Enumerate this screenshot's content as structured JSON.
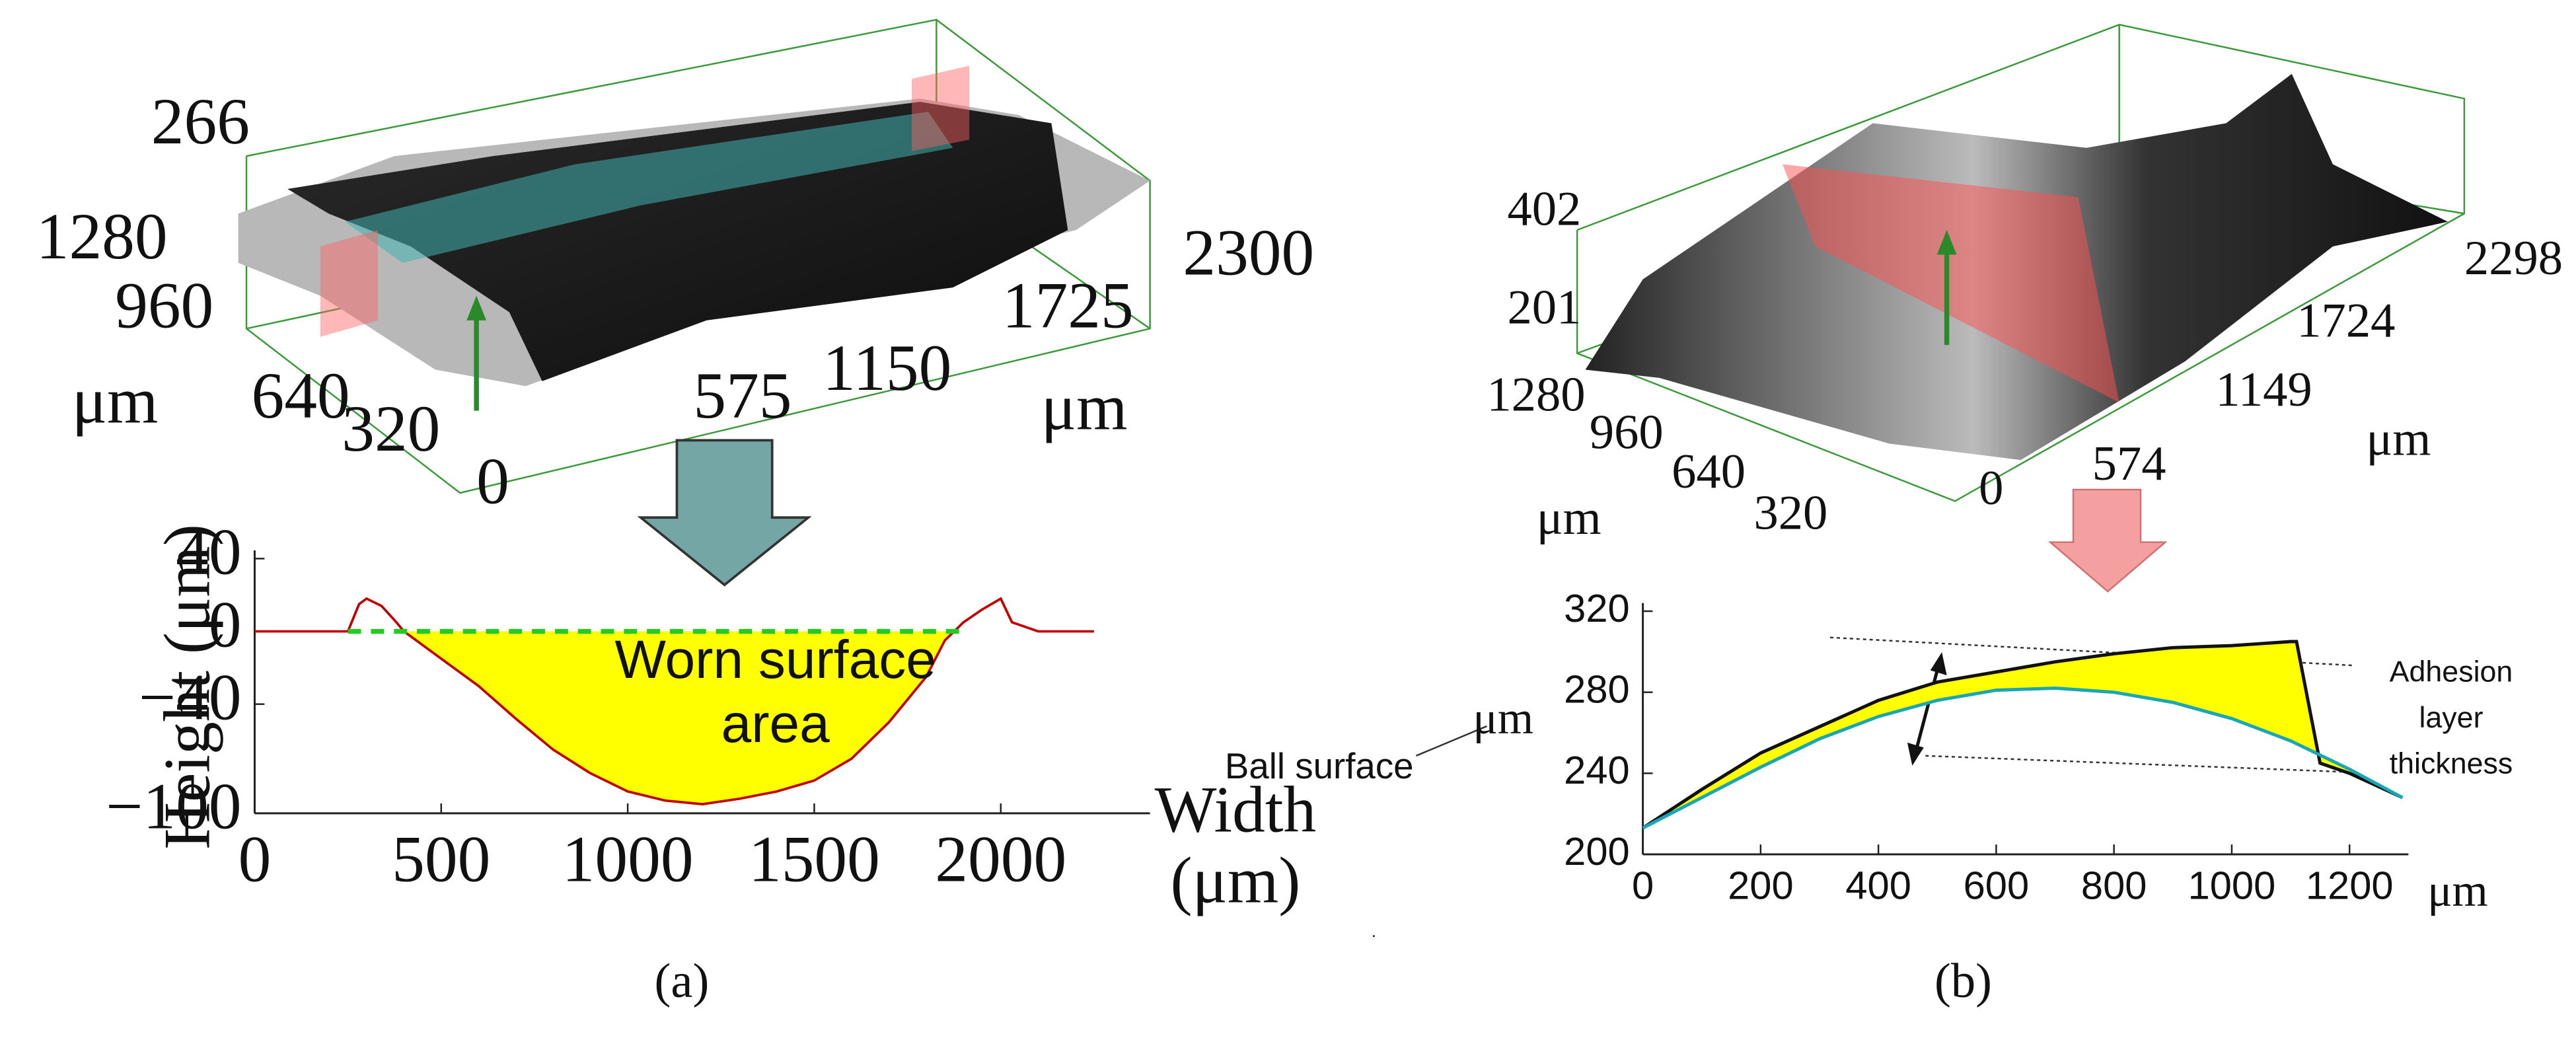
{
  "figure": {
    "panels": [
      {
        "label": "(a)",
        "surface": {
          "z_ticks": [
            266
          ],
          "y_ticks": [
            1280,
            960,
            640,
            320
          ],
          "y_unit": "μm",
          "x_ticks": [
            0,
            575,
            1150,
            1725,
            2300
          ],
          "x_unit": "μm"
        }
      },
      {
        "label": "(b)",
        "surface": {
          "z_ticks": [
            402,
            201
          ],
          "y_ticks": [
            1280,
            960,
            640,
            320
          ],
          "y_unit": "μm",
          "x_ticks": [
            0,
            574,
            1149,
            1724,
            2298
          ],
          "x_unit": "μm"
        }
      }
    ]
  },
  "chart_data": [
    {
      "type": "line",
      "ylabel": "Height (μm)",
      "xlabel": [
        "Width",
        "(μm)"
      ],
      "annotations": {
        "worn": [
          "Worn surface",
          "area"
        ]
      },
      "xlim": [
        0,
        2400
      ],
      "xticks": [
        0,
        500,
        1000,
        1500,
        2000
      ],
      "ylim": [
        -100,
        40
      ],
      "yticks": [
        40,
        0,
        {
          "value": -40,
          "label": "−40"
        },
        {
          "value": -100,
          "label": "−100"
        }
      ],
      "fill_color": "#ffff00",
      "series": [
        {
          "color": "#c00000",
          "x": [
            0,
            250,
            280,
            300,
            340,
            380,
            400,
            500,
            600,
            700,
            800,
            900,
            1000,
            1100,
            1200,
            1300,
            1400,
            1500,
            1600,
            1700,
            1800,
            1850,
            1900,
            1950,
            2000,
            2030,
            2100,
            2250
          ],
          "values": [
            0,
            0,
            15,
            18,
            14,
            5,
            0,
            -15,
            -30,
            -48,
            -65,
            -78,
            -88,
            -93,
            -95,
            -92,
            -88,
            -82,
            -70,
            -50,
            -25,
            -5,
            5,
            12,
            18,
            5,
            0,
            0
          ]
        },
        {
          "color": "#22cc22",
          "dash": true,
          "x": [
            250,
            1900
          ],
          "values": [
            0,
            0
          ]
        }
      ]
    },
    {
      "type": "line",
      "ylabel": "μm",
      "xlabel": "μm",
      "annotations": {
        "ball": "Ball surface",
        "adhesion": [
          "Adhesion",
          "layer",
          "thickness"
        ]
      },
      "xlim": [
        0,
        1300
      ],
      "xticks": [
        0,
        200,
        400,
        600,
        800,
        1000,
        1200
      ],
      "ylim": [
        200,
        320
      ],
      "yticks": [
        200,
        240,
        280,
        320
      ],
      "fill_color": "#ffff00",
      "series": [
        {
          "color": "#111111",
          "x": [
            0,
            100,
            200,
            300,
            400,
            500,
            600,
            700,
            800,
            900,
            1000,
            1100,
            1110,
            1150,
            1200,
            1290
          ],
          "values": [
            213,
            232,
            250,
            263,
            276,
            285,
            290,
            295,
            299,
            302,
            303,
            305,
            305,
            245,
            240,
            228
          ]
        },
        {
          "color": "#1aa6b7",
          "x": [
            0,
            100,
            200,
            300,
            400,
            500,
            600,
            700,
            800,
            900,
            1000,
            1100,
            1150,
            1200,
            1290
          ],
          "values": [
            213,
            228,
            243,
            257,
            268,
            276,
            281,
            282,
            280,
            275,
            267,
            256,
            249,
            242,
            228
          ]
        }
      ]
    }
  ]
}
